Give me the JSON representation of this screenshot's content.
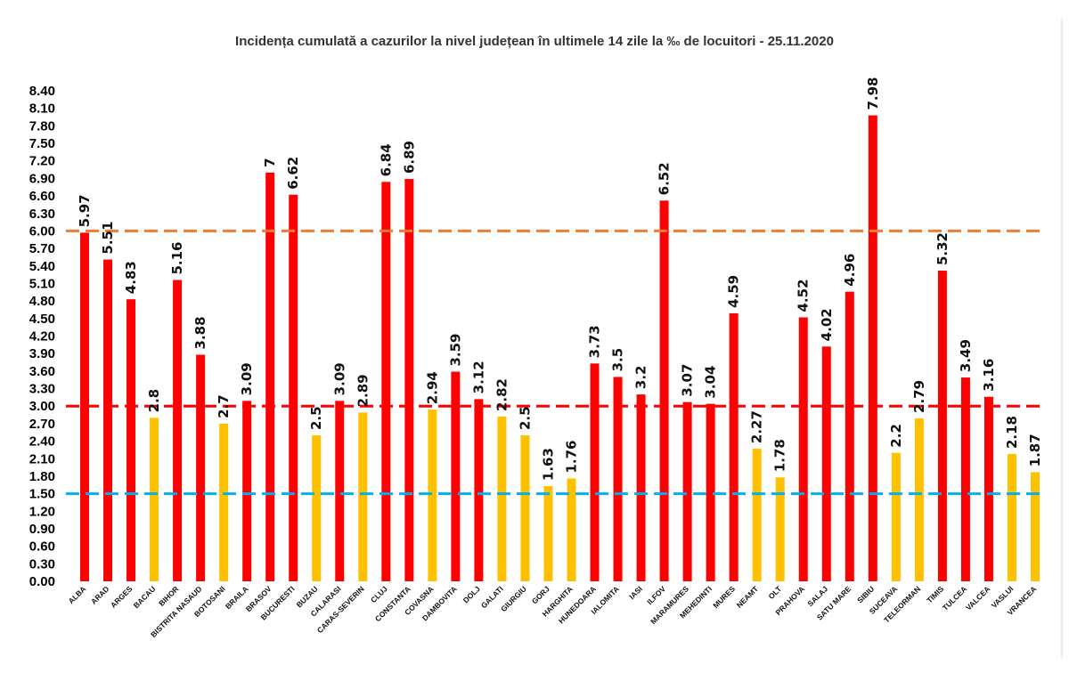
{
  "chart_data": {
    "type": "bar",
    "title": "Incidența cumulată a cazurilor la nivel județean în ultimele 14 zile la ‰ de locuitori - 25.11.2020",
    "xlabel": "",
    "ylabel": "",
    "ylim": [
      0,
      8.4
    ],
    "yticks": [
      "0.00",
      "0.30",
      "0.60",
      "0.90",
      "1.20",
      "1.50",
      "1.80",
      "2.10",
      "2.40",
      "2.70",
      "3.00",
      "3.30",
      "3.60",
      "3.90",
      "4.20",
      "4.50",
      "4.80",
      "5.10",
      "5.40",
      "5.70",
      "6.00",
      "6.30",
      "6.60",
      "6.90",
      "7.20",
      "7.50",
      "7.80",
      "8.10",
      "8.40"
    ],
    "categories": [
      "ALBA",
      "ARAD",
      "ARGES",
      "BACAU",
      "BIHOR",
      "BISTRITA NASAUD",
      "BOTOSANI",
      "BRAILA",
      "BRASOV",
      "BUCURESTI",
      "BUZAU",
      "CALARASI",
      "CARAS-SEVERIN",
      "CLUJ",
      "CONSTANTA",
      "COVASNA",
      "DAMBOVITA",
      "DOLJ",
      "GALATI",
      "GIURGIU",
      "GORJ",
      "HARGHITA",
      "HUNEDOARA",
      "IALOMITA",
      "IASI",
      "ILFOV",
      "MARAMURES",
      "MEHEDINTI",
      "MURES",
      "NEAMT",
      "OLT",
      "PRAHOVA",
      "SALAJ",
      "SATU MARE",
      "SIBIU",
      "SUCEAVA",
      "TELEORMAN",
      "TIMIS",
      "TULCEA",
      "VALCEA",
      "VASLUI",
      "VRANCEA"
    ],
    "values": [
      5.97,
      5.51,
      4.83,
      2.8,
      5.16,
      3.88,
      2.7,
      3.09,
      7,
      6.62,
      2.5,
      3.09,
      2.89,
      6.84,
      6.89,
      2.94,
      3.59,
      3.12,
      2.82,
      2.5,
      1.63,
      1.76,
      3.73,
      3.5,
      3.2,
      6.52,
      3.07,
      3.04,
      4.59,
      2.27,
      1.78,
      4.52,
      4.02,
      4.96,
      7.98,
      2.2,
      2.79,
      5.32,
      3.49,
      3.16,
      2.18,
      1.87
    ],
    "value_labels": [
      "5.97",
      "5.51",
      "4.83",
      "2.8",
      "5.16",
      "3.88",
      "2.7",
      "3.09",
      "7",
      "6.62",
      "2.5",
      "3.09",
      "2.89",
      "6.84",
      "6.89",
      "2.94",
      "3.59",
      "3.12",
      "2.82",
      "2.5",
      "1.63",
      "1.76",
      "3.73",
      "3.5",
      "3.2",
      "6.52",
      "3.07",
      "3.04",
      "4.59",
      "2.27",
      "1.78",
      "4.52",
      "4.02",
      "4.96",
      "7.98",
      "2.2",
      "2.79",
      "5.32",
      "3.49",
      "3.16",
      "2.18",
      "1.87"
    ],
    "threshold_lines": [
      {
        "name": "threshold-6",
        "value": 6.0,
        "color": "#ED7D31"
      },
      {
        "name": "threshold-3",
        "value": 3.0,
        "color": "#FF0000"
      },
      {
        "name": "threshold-1.5",
        "value": 1.5,
        "color": "#00B0F0"
      }
    ],
    "colors": {
      "above_3": "#FF0000",
      "below_3": "#FFC000",
      "threshold_for_red": 3.0
    },
    "grid": false,
    "legend": "none"
  }
}
